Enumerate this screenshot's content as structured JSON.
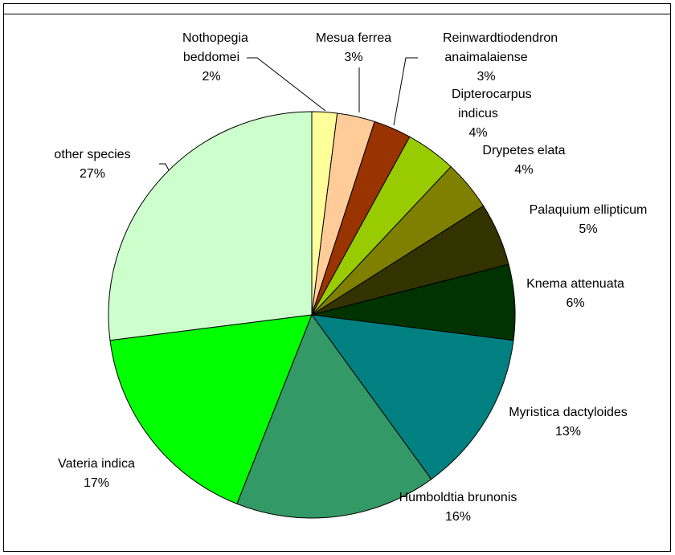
{
  "chart_data": {
    "type": "pie",
    "categories": [
      "Nothopegia beddomei",
      "Mesua ferrea",
      "Reinwardtiodendron anaimalaiense",
      "Dipterocarpus indicus",
      "Drypetes elata",
      "Palaquium ellipticum",
      "Knema attenuata",
      "Myristica dactyloides",
      "Humboldtia brunonis",
      "Vateria indica",
      "other species"
    ],
    "values": [
      2,
      3,
      3,
      4,
      4,
      5,
      6,
      13,
      16,
      17,
      27
    ],
    "value_labels": [
      "2%",
      "3%",
      "3%",
      "4%",
      "4%",
      "5%",
      "6%",
      "13%",
      "16%",
      "17%",
      "27%"
    ],
    "colors": [
      "#FFFF99",
      "#FFCC99",
      "#993300",
      "#99CC00",
      "#808000",
      "#333300",
      "#003300",
      "#008080",
      "#339966",
      "#00FF00",
      "#CCFFCC"
    ]
  }
}
